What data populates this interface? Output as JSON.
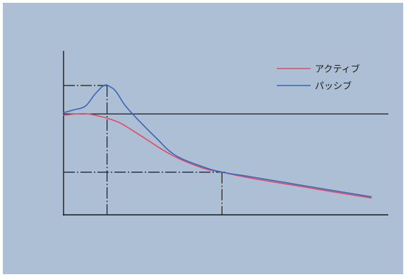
{
  "chart_data": {
    "type": "line",
    "title": "",
    "xlabel": "",
    "ylabel": "",
    "grid": false,
    "legend_position": "top-right",
    "xlim": [
      0,
      100
    ],
    "ylim": [
      0,
      100
    ],
    "reference_lines": {
      "horizontal": [
        {
          "y": 100,
          "x_from": 0,
          "x_to": 14,
          "style": "dash-dot"
        },
        {
          "y": 78,
          "x_from": 0,
          "x_to": 100,
          "style": "solid"
        },
        {
          "y": 33,
          "x_from": 0,
          "x_to": 52,
          "style": "dash-dot"
        }
      ],
      "vertical": [
        {
          "x": 14,
          "y_from": 0,
          "y_to": 100,
          "style": "dash-dot"
        },
        {
          "x": 51,
          "y_from": 0,
          "y_to": 33,
          "style": "dash-dot"
        }
      ]
    },
    "series": [
      {
        "name": "アクティブ",
        "color": "#e04a6a",
        "x": [
          0,
          4,
          8,
          12,
          15,
          19,
          25,
          35,
          45,
          51,
          60,
          75,
          90,
          99
        ],
        "y": [
          77,
          78,
          78,
          76,
          74,
          70,
          61,
          46,
          36,
          33,
          28.5,
          22.5,
          16.5,
          13
        ]
      },
      {
        "name": "パッシブ",
        "color": "#3b65b5",
        "x": [
          0,
          3,
          7,
          10,
          13,
          15,
          17,
          20,
          25,
          30,
          36,
          45,
          51,
          60,
          75,
          90,
          99
        ],
        "y": [
          79,
          81,
          84,
          93,
          100,
          99,
          95,
          84,
          71,
          59,
          46,
          37,
          33,
          29.5,
          23.5,
          17.5,
          14
        ]
      }
    ]
  }
}
